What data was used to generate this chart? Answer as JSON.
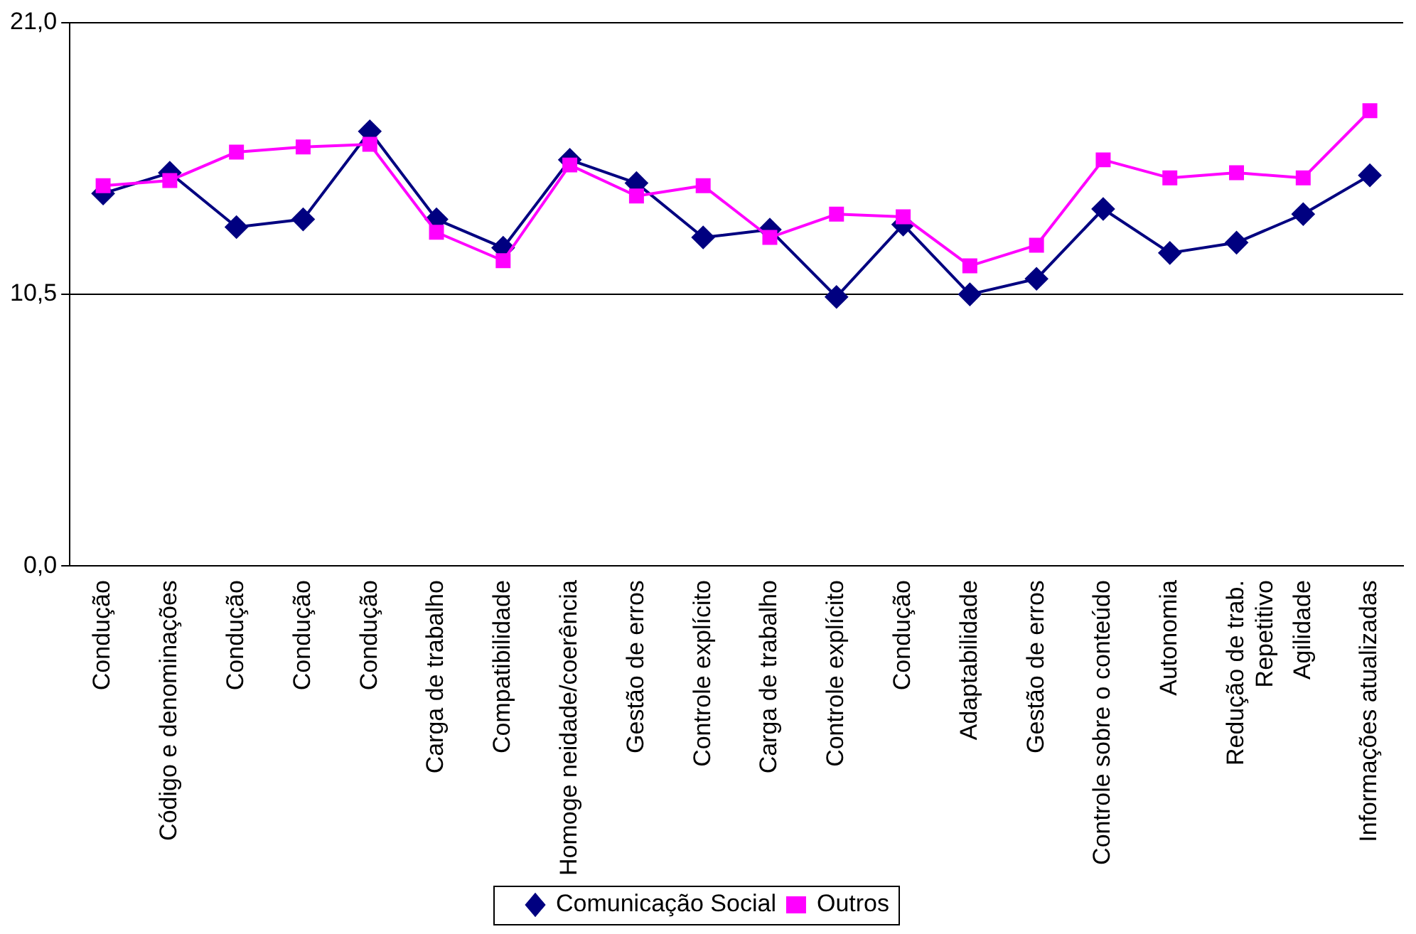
{
  "chart_data": {
    "type": "line",
    "categories": [
      "Condução",
      "Código e denominações",
      "Condução",
      "Condução",
      "Condução",
      "Carga de trabalho",
      "Compatibilidade",
      "Homoge neidade/coerência",
      "Gestão de erros",
      "Controle explícito",
      "Carga de trabalho",
      "Controle explícito",
      "Condução",
      "Adaptabilidade",
      "Gestão de erros",
      "Controle sobre o conteúdo",
      "Autonomia",
      "Redução de trab.\nRepetitivo",
      "Agilidade",
      "Informações atualizadas"
    ],
    "series": [
      {
        "name": "Comunicação Social",
        "color": "#000080",
        "marker": "diamond",
        "values": [
          14.4,
          15.2,
          13.1,
          13.4,
          16.8,
          13.4,
          12.3,
          15.7,
          14.8,
          12.7,
          13.0,
          10.4,
          13.2,
          10.5,
          11.1,
          13.8,
          12.1,
          12.5,
          13.6,
          15.1
        ]
      },
      {
        "name": "Outros",
        "color": "#ff00ff",
        "marker": "square",
        "values": [
          14.7,
          14.9,
          16.0,
          16.2,
          16.3,
          12.9,
          11.8,
          15.5,
          14.3,
          14.7,
          12.7,
          13.6,
          13.5,
          11.6,
          12.4,
          15.7,
          15.0,
          15.2,
          15.0,
          17.6
        ]
      }
    ],
    "ylim": [
      0,
      21
    ],
    "yticks": [
      {
        "value": 0,
        "label": "0,0"
      },
      {
        "value": 10.5,
        "label": "10,5"
      },
      {
        "value": 21,
        "label": "21,0"
      }
    ],
    "grid": "y",
    "legend": "bottom"
  }
}
